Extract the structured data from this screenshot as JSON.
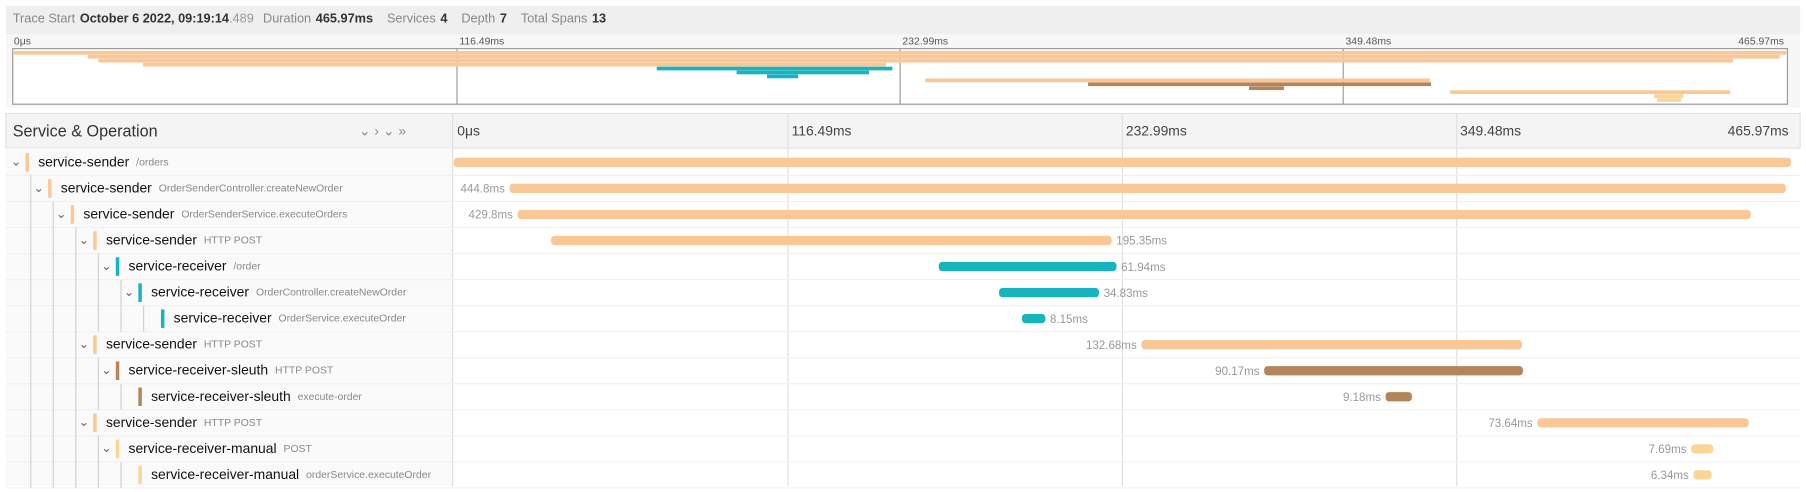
{
  "header": {
    "trace_start_label": "Trace Start",
    "trace_start": "October 6 2022, 09:19:14",
    "trace_start_ms": ".489",
    "duration_label": "Duration",
    "duration": "465.97ms",
    "services_label": "Services",
    "services": "4",
    "depth_label": "Depth",
    "depth": "7",
    "spans_label": "Total Spans",
    "spans": "13"
  },
  "timeline": {
    "range": [
      0,
      465.97
    ],
    "ticks": [
      {
        "value": 0,
        "label": "0μs"
      },
      {
        "value": 116.49,
        "label": "116.49ms"
      },
      {
        "value": 232.99,
        "label": "232.99ms"
      },
      {
        "value": 349.48,
        "label": "349.48ms"
      },
      {
        "value": 465.97,
        "label": "465.97ms"
      }
    ]
  },
  "tree_header": "Service & Operation",
  "spans": [
    {
      "service": "service-sender",
      "operation": "/orders",
      "depth": 0,
      "start": 0,
      "duration": 465.97,
      "color": "#fac795"
    },
    {
      "service": "service-sender",
      "operation": "OrderSenderController.createNewOrder",
      "depth": 1,
      "start": 19.4,
      "duration": 444.8,
      "duration_label": "444.8ms",
      "color": "#fac795"
    },
    {
      "service": "service-sender",
      "operation": "OrderSenderService.executeOrders",
      "depth": 2,
      "start": 22.2,
      "duration": 429.8,
      "duration_label": "429.8ms",
      "color": "#fac795"
    },
    {
      "service": "service-sender",
      "operation": "HTTP POST",
      "depth": 3,
      "start": 33.9,
      "duration": 195.35,
      "duration_label": "195.35ms",
      "color": "#fac795"
    },
    {
      "service": "service-receiver",
      "operation": "/order",
      "depth": 4,
      "start": 169,
      "duration": 61.94,
      "duration_label": "61.94ms",
      "color": "#17b4bf"
    },
    {
      "service": "service-receiver",
      "operation": "OrderController.createNewOrder",
      "depth": 5,
      "start": 190,
      "duration": 34.83,
      "duration_label": "34.83ms",
      "color": "#17b4bf"
    },
    {
      "service": "service-receiver",
      "operation": "OrderService.executeOrder",
      "depth": 6,
      "start": 198,
      "duration": 8.15,
      "duration_label": "8.15ms",
      "color": "#17b4bf"
    },
    {
      "service": "service-sender",
      "operation": "HTTP POST",
      "depth": 3,
      "start": 239.6,
      "duration": 132.68,
      "duration_label": "132.68ms",
      "color": "#fac795"
    },
    {
      "service": "service-receiver-sleuth",
      "operation": "HTTP POST",
      "depth": 4,
      "start": 282.4,
      "duration": 90.17,
      "duration_label": "90.17ms",
      "color": "#b5855a"
    },
    {
      "service": "service-receiver-sleuth",
      "operation": "execute-order",
      "depth": 5,
      "start": 324.7,
      "duration": 9.18,
      "duration_label": "9.18ms",
      "color": "#b5855a"
    },
    {
      "service": "service-sender",
      "operation": "HTTP POST",
      "depth": 3,
      "start": 377.6,
      "duration": 73.64,
      "duration_label": "73.64ms",
      "color": "#fac795"
    },
    {
      "service": "service-receiver-manual",
      "operation": "POST",
      "depth": 4,
      "start": 431.2,
      "duration": 7.69,
      "duration_label": "7.69ms",
      "color": "#f9d697"
    },
    {
      "service": "service-receiver-manual",
      "operation": "orderService.executeOrder",
      "depth": 5,
      "start": 432,
      "duration": 6.34,
      "duration_label": "6.34ms",
      "color": "#f9d697"
    }
  ]
}
